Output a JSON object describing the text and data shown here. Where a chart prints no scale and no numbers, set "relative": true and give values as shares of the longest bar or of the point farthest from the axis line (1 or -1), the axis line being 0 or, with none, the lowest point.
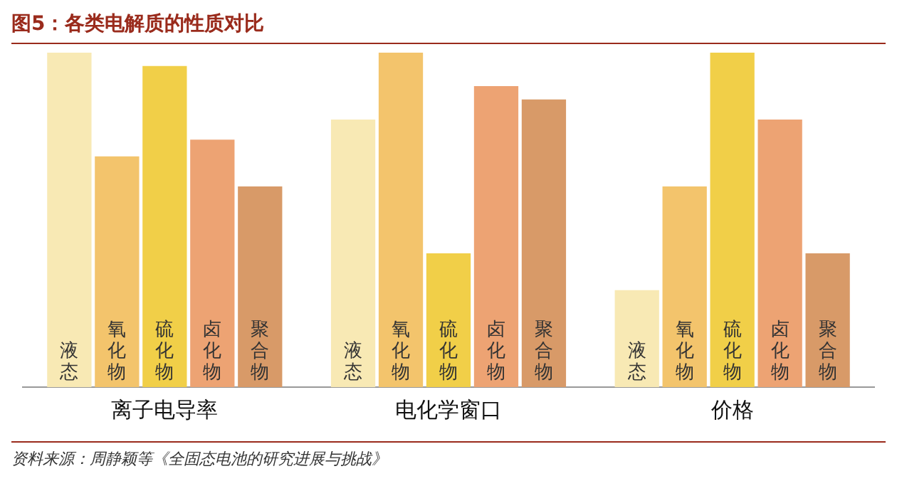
{
  "chart_data": {
    "type": "bar",
    "title": "图5：各类电解质的性质对比",
    "categories": [
      "离子电导率",
      "电化学窗口",
      "价格"
    ],
    "relative": true,
    "legend": false,
    "grid": false,
    "series": [
      {
        "name": "液态",
        "color": "#f8e9b4",
        "values": [
          1.0,
          0.8,
          0.29
        ]
      },
      {
        "name": "氧化物",
        "color": "#f3c46c",
        "values": [
          0.69,
          1.0,
          0.6
        ]
      },
      {
        "name": "硫化物",
        "color": "#f1cf48",
        "values": [
          0.96,
          0.4,
          1.0
        ]
      },
      {
        "name": "卤化物",
        "color": "#eda373",
        "values": [
          0.74,
          0.9,
          0.8
        ]
      },
      {
        "name": "聚合物",
        "color": "#d89a68",
        "values": [
          0.6,
          0.86,
          0.4
        ]
      }
    ],
    "annotations": [
      "资料来源：周静颖等《全固态电池的研究进展与挑战》"
    ]
  }
}
